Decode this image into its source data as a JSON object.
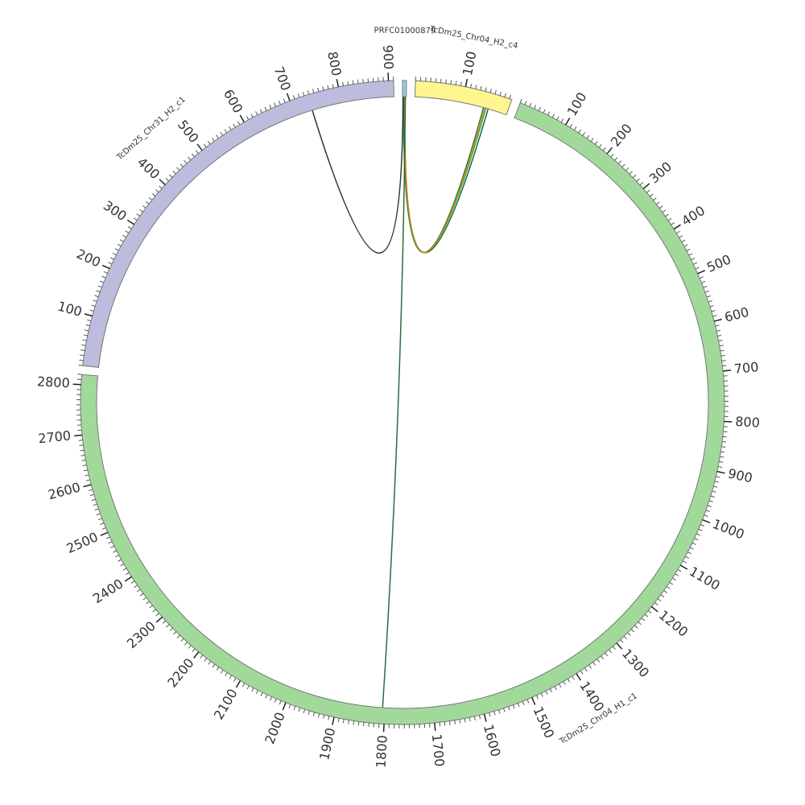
{
  "chart_data": {
    "type": "chord",
    "segments": [
      {
        "name": "PRFC01000879",
        "length": 8,
        "color": "#9ecae1",
        "ticks": []
      },
      {
        "name": "TcDm25_Chr04_H2_c4",
        "length": 195,
        "color": "#fff68f",
        "ticks": [
          100
        ]
      },
      {
        "name": "TcDm25_Chr04_H1_c1",
        "length": 2820,
        "color": "#a1d99b",
        "ticks": [
          100,
          200,
          300,
          400,
          500,
          600,
          700,
          800,
          900,
          1000,
          1100,
          1200,
          1300,
          1400,
          1500,
          1600,
          1700,
          1800,
          1900,
          2000,
          2100,
          2200,
          2300,
          2400,
          2500,
          2600,
          2700,
          2800
        ]
      },
      {
        "name": "TcDm25_Chr31_H2_c1",
        "length": 910,
        "color": "#bcbddc",
        "ticks": [
          100,
          200,
          300,
          400,
          500,
          600,
          700,
          800,
          900
        ]
      }
    ],
    "minor_tick_step": 10,
    "links": [
      {
        "source": 0,
        "source_pos": 2,
        "target": 1,
        "target_pos": 145,
        "color": "#1a7a3a"
      },
      {
        "source": 0,
        "source_pos": 3,
        "target": 1,
        "target_pos": 150,
        "color": "#2ca25f"
      },
      {
        "source": 0,
        "source_pos": 4,
        "target": 1,
        "target_pos": 155,
        "color": "#006d2c"
      },
      {
        "source": 0,
        "source_pos": 5,
        "target": 1,
        "target_pos": 148,
        "color": "#e6850e"
      },
      {
        "source": 0,
        "source_pos": 1,
        "target": 3,
        "target_pos": 737,
        "color": "#333333"
      },
      {
        "source": 0,
        "source_pos": 6,
        "target": 2,
        "target_pos": 1805,
        "color": "#2f6b3f"
      }
    ]
  }
}
